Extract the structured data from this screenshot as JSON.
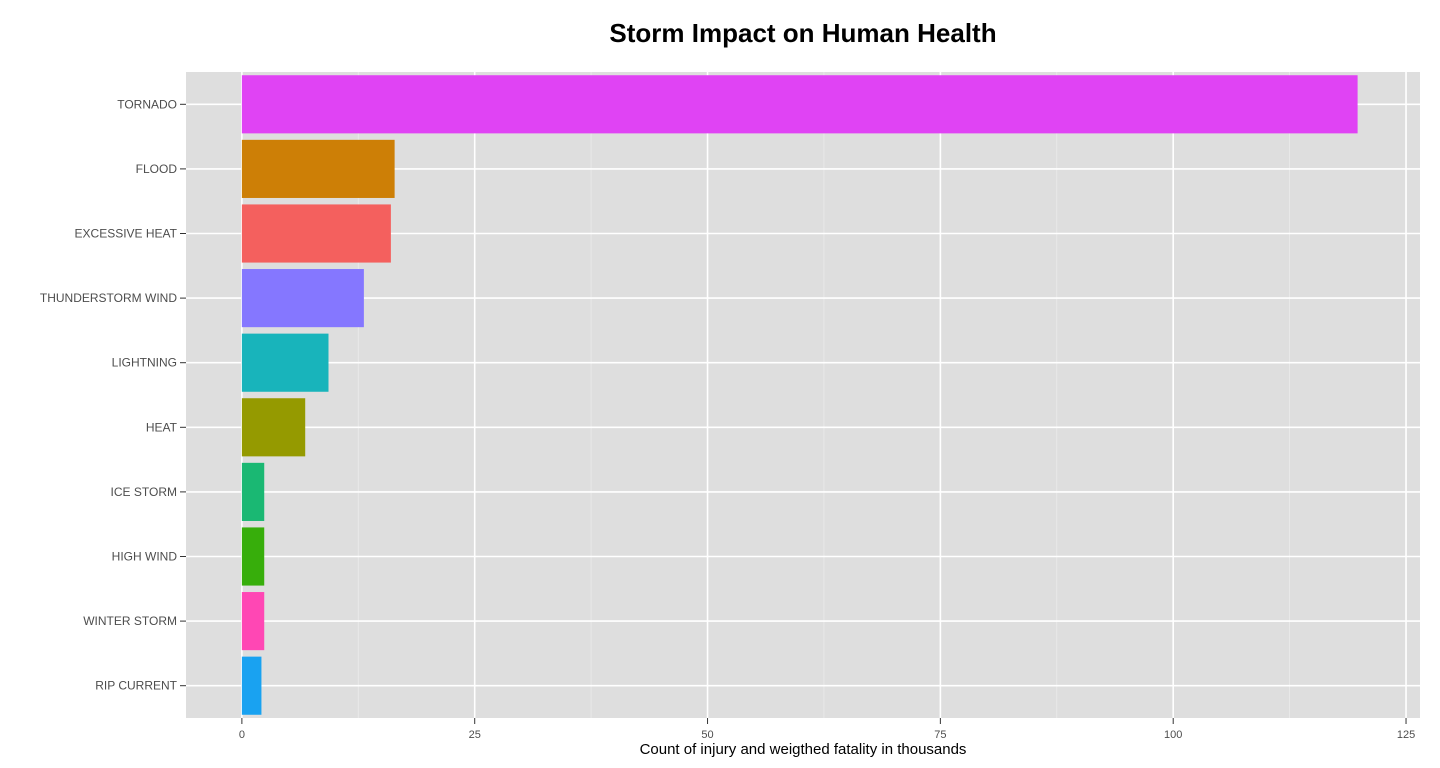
{
  "chart_data": {
    "type": "bar",
    "orientation": "horizontal",
    "title": "Storm Impact on Human Health",
    "xlabel": "Count of injury and weigthed fatality in thousands",
    "ylabel": "",
    "xlim": [
      -6,
      126.5
    ],
    "x_ticks": [
      "0",
      "25",
      "50",
      "75",
      "100",
      "125"
    ],
    "categories": [
      "TORNADO",
      "FLOOD",
      "EXCESSIVE HEAT",
      "THUNDERSTORM WIND",
      "LIGHTNING",
      "HEAT",
      "ICE STORM",
      "HIGH WIND",
      "WINTER STORM",
      "RIP CURRENT"
    ],
    "values": [
      119.8,
      16.4,
      16.0,
      13.1,
      9.3,
      6.8,
      2.4,
      2.4,
      2.4,
      2.1
    ],
    "colors": [
      "#E043F4",
      "#CD7F06",
      "#F4605E",
      "#8577FF",
      "#18B4BB",
      "#959A00",
      "#1AB873",
      "#37AE0B",
      "#FF47B4",
      "#19A2F1"
    ],
    "grid": true,
    "panel_background": "#DEDEDE",
    "legend": "none"
  }
}
